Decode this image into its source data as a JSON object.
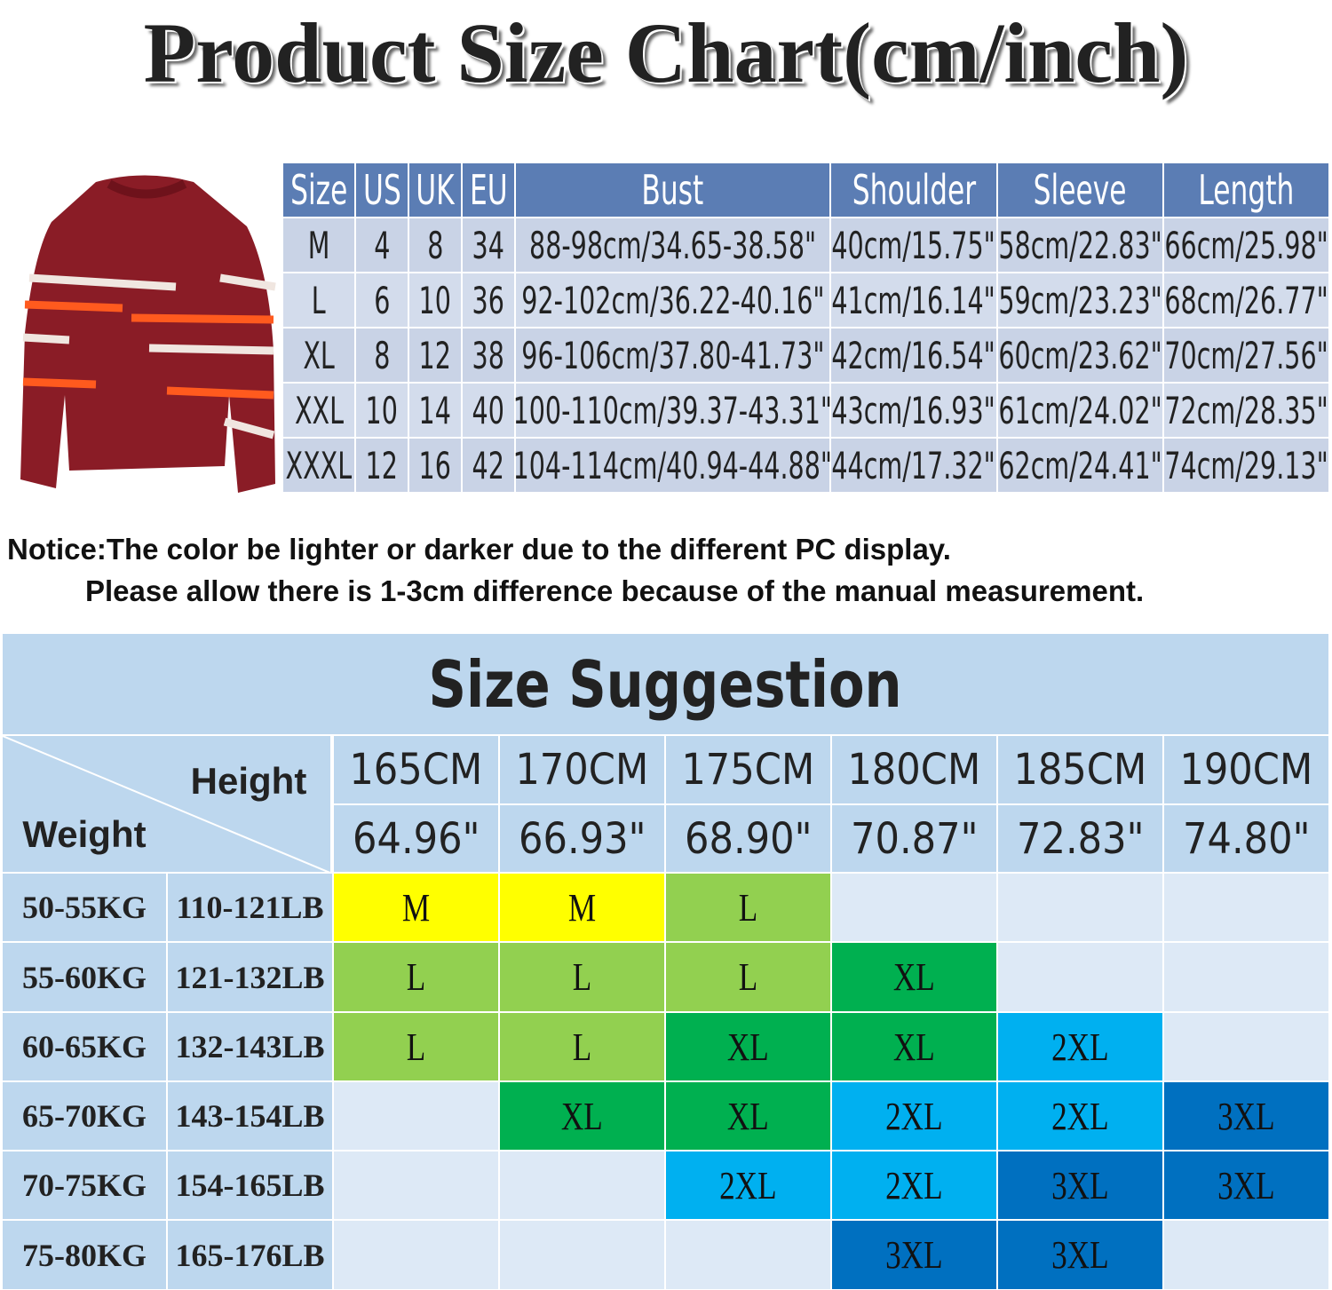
{
  "title": "Product Size Chart(cm/inch)",
  "size_table": {
    "header": [
      "Size",
      "US",
      "UK",
      "EU",
      "Bust",
      "Shoulder",
      "Sleeve",
      "Length"
    ],
    "rows": [
      [
        "M",
        "4",
        "8",
        "34",
        "88-98cm/34.65-38.58\"",
        "40cm/15.75\"",
        "58cm/22.83\"",
        "66cm/25.98\""
      ],
      [
        "L",
        "6",
        "10",
        "36",
        "92-102cm/36.22-40.16\"",
        "41cm/16.14\"",
        "59cm/23.23\"",
        "68cm/26.77\""
      ],
      [
        "XL",
        "8",
        "12",
        "38",
        "96-106cm/37.80-41.73\"",
        "42cm/16.54\"",
        "60cm/23.62\"",
        "70cm/27.56\""
      ],
      [
        "XXL",
        "10",
        "14",
        "40",
        "100-110cm/39.37-43.31\"",
        "43cm/16.93\"",
        "61cm/24.02\"",
        "72cm/28.35\""
      ],
      [
        "XXXL",
        "12",
        "16",
        "42",
        "104-114cm/40.94-44.88\"",
        "44cm/17.32\"",
        "62cm/24.41\"",
        "74cm/29.13\""
      ]
    ]
  },
  "notice": [
    "Notice:The color be lighter or darker due to the different PC display.",
    "Please allow there is 1-3cm difference because of the manual measurement."
  ],
  "suggestion": {
    "title": "Size Suggestion",
    "height_label": "Height",
    "weight_label": "Weight",
    "heights_cm": [
      "165CM",
      "170CM",
      "175CM",
      "180CM",
      "185CM",
      "190CM"
    ],
    "heights_in": [
      "64.96\"",
      "66.93\"",
      "68.90\"",
      "70.87\"",
      "72.83\"",
      "74.80\""
    ],
    "rows": [
      {
        "kg": "50-55KG",
        "lb": "110-121LB",
        "sizes": [
          "M",
          "M",
          "L",
          null,
          null,
          null
        ]
      },
      {
        "kg": "55-60KG",
        "lb": "121-132LB",
        "sizes": [
          "L",
          "L",
          "L",
          "XL",
          null,
          null
        ]
      },
      {
        "kg": "60-65KG",
        "lb": "132-143LB",
        "sizes": [
          "L",
          "L",
          "XL",
          "XL",
          "2XL",
          null
        ]
      },
      {
        "kg": "65-70KG",
        "lb": "143-154LB",
        "sizes": [
          null,
          "XL",
          "XL",
          "2XL",
          "2XL",
          "3XL"
        ]
      },
      {
        "kg": "70-75KG",
        "lb": "154-165LB",
        "sizes": [
          null,
          null,
          "2XL",
          "2XL",
          "3XL",
          "3XL"
        ]
      },
      {
        "kg": "75-80KG",
        "lb": "165-176LB",
        "sizes": [
          null,
          null,
          null,
          "3XL",
          "3XL",
          null
        ]
      }
    ],
    "size_colors": {
      "M": "#ffff00",
      "L": "#92d050",
      "XL": "#00b050",
      "2XL": "#00b0f0",
      "3XL": "#0070c0"
    }
  }
}
